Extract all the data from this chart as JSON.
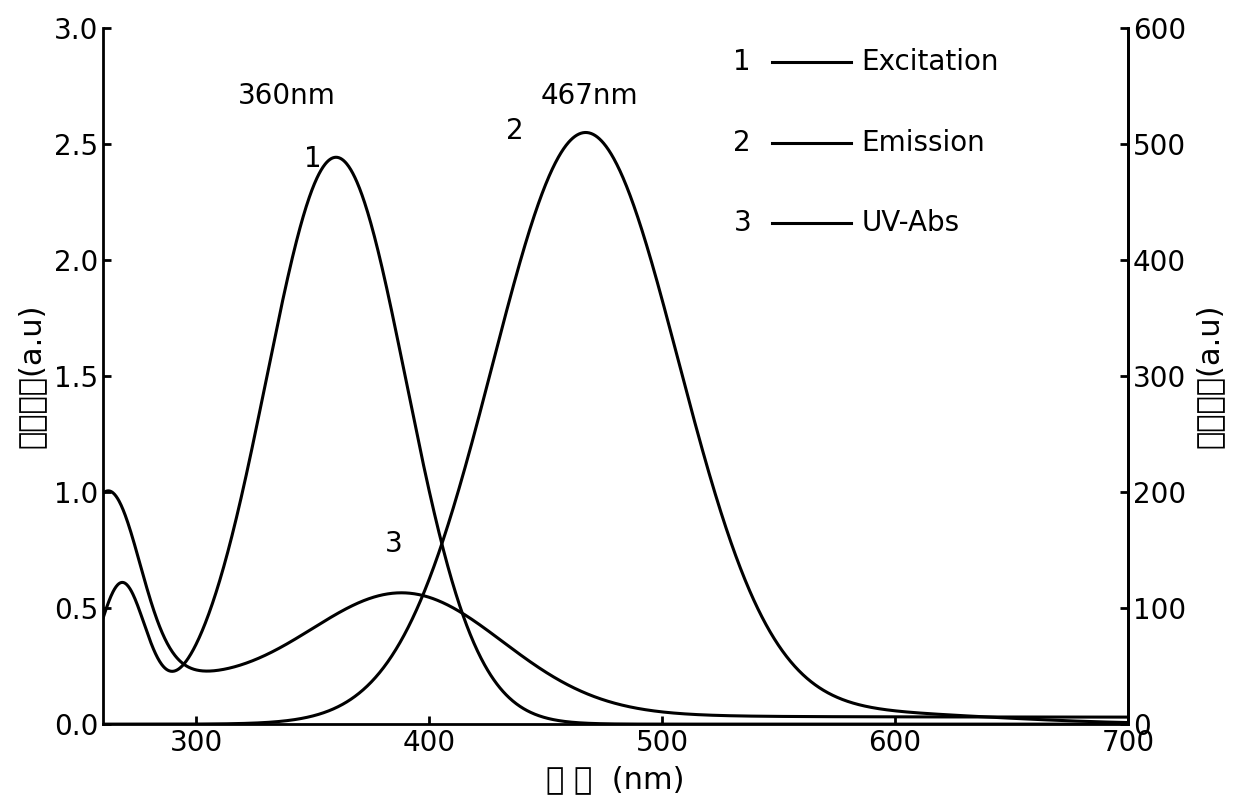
{
  "title": "",
  "xlabel": "波 长  (nm)",
  "ylabel_left": "吸收强度(a.u)",
  "ylabel_right": "荧光强度(a.u)",
  "xlim": [
    260,
    700
  ],
  "ylim_left": [
    0.0,
    3.0
  ],
  "ylim_right": [
    0,
    600
  ],
  "xticks": [
    300,
    400,
    500,
    600,
    700
  ],
  "yticks_left": [
    0.0,
    0.5,
    1.0,
    1.5,
    2.0,
    2.5,
    3.0
  ],
  "yticks_right": [
    0,
    100,
    200,
    300,
    400,
    500,
    600
  ],
  "peak1_label": "360nm",
  "peak2_label": "467nm",
  "curve_labels": [
    "1",
    "2",
    "3"
  ],
  "legend_items": [
    {
      "number": "1",
      "label": "Excitation"
    },
    {
      "number": "2",
      "label": "Emission"
    },
    {
      "number": "3",
      "label": "UV-Abs"
    }
  ],
  "line_color": "#000000",
  "background_color": "#ffffff",
  "fontsize_ticks": 20,
  "fontsize_labels": 22,
  "fontsize_annotations": 20,
  "fontsize_legend": 20
}
